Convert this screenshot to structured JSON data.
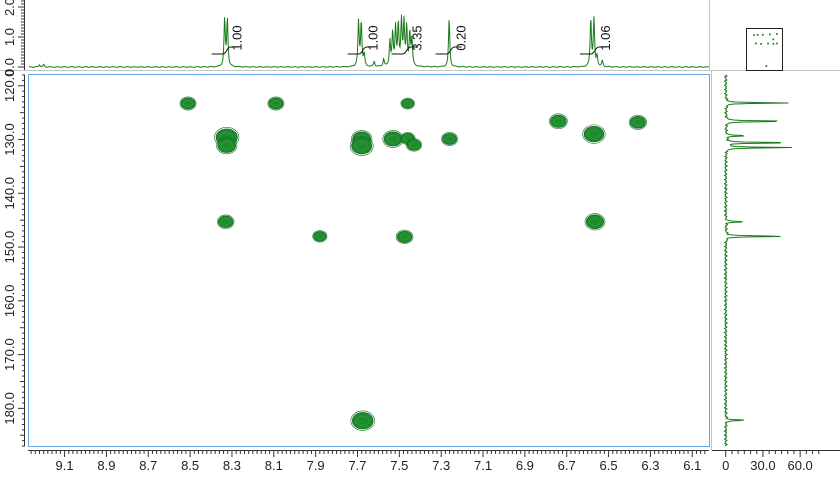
{
  "colors": {
    "trace": "#1a7a1a",
    "contour_fill": "#1f8a2e",
    "contour_edge": "#176f23",
    "axis": "#333333",
    "plot_border": "#6aa3e6",
    "background": "#ffffff"
  },
  "chart_data": {
    "type": "heatmap",
    "description_type": "2D HSQC NMR contour plot",
    "x_axis": {
      "ticks": [
        "9.1",
        "8.9",
        "8.7",
        "8.5",
        "8.3",
        "8.1",
        "7.9",
        "7.7",
        "7.5",
        "7.3",
        "7.1",
        "6.9",
        "6.7",
        "6.5",
        "6.3",
        "6.1"
      ],
      "range": [
        9.27,
        6.02
      ],
      "reversed": true,
      "unit": "ppm"
    },
    "y_axis": {
      "ticks": [
        "120.0",
        "130.0",
        "140.0",
        "150.0",
        "160.0",
        "170.0",
        "180.0"
      ],
      "range": [
        118.0,
        187.0
      ],
      "reversed": true,
      "unit": "ppm"
    },
    "top_1d": {
      "y_ticks": [
        "0.0",
        "1.0",
        "2.0"
      ],
      "integrals": [
        {
          "label": "1.00",
          "x": 8.33
        },
        {
          "label": "1.00",
          "x": 7.68
        },
        {
          "label": "3.35",
          "x": 7.47
        },
        {
          "label": "0.20",
          "x": 7.26
        },
        {
          "label": "1.06",
          "x": 6.57
        }
      ],
      "peaks": [
        {
          "x": 9.22,
          "h": 0.08
        },
        {
          "x": 9.2,
          "h": 0.08
        },
        {
          "x": 8.335,
          "h": 1.6
        },
        {
          "x": 8.322,
          "h": 1.6
        },
        {
          "x": 7.695,
          "h": 1.5
        },
        {
          "x": 7.682,
          "h": 1.5
        },
        {
          "x": 7.668,
          "h": 0.4
        },
        {
          "x": 7.62,
          "h": 0.18
        },
        {
          "x": 7.575,
          "h": 0.25
        },
        {
          "x": 7.545,
          "h": 0.85
        },
        {
          "x": 7.532,
          "h": 1.1
        },
        {
          "x": 7.518,
          "h": 1.3
        },
        {
          "x": 7.505,
          "h": 1.4
        },
        {
          "x": 7.49,
          "h": 1.5
        },
        {
          "x": 7.478,
          "h": 1.45
        },
        {
          "x": 7.465,
          "h": 1.3
        },
        {
          "x": 7.45,
          "h": 1.1
        },
        {
          "x": 7.44,
          "h": 0.9
        },
        {
          "x": 7.262,
          "h": 1.6
        },
        {
          "x": 6.585,
          "h": 1.6
        },
        {
          "x": 6.57,
          "h": 1.6
        },
        {
          "x": 6.555,
          "h": 0.35
        },
        {
          "x": 6.53,
          "h": 0.2
        }
      ]
    },
    "right_1d": {
      "x_ticks": [
        "0",
        "30.0",
        "60.0"
      ],
      "x_range": [
        -3,
        76
      ],
      "peaks": [
        {
          "y": 123.2,
          "v": 50
        },
        {
          "y": 126.6,
          "v": 55
        },
        {
          "y": 129.3,
          "v": 19
        },
        {
          "y": 130.6,
          "v": 57
        },
        {
          "y": 131.5,
          "v": 55
        },
        {
          "y": 145.3,
          "v": 17
        },
        {
          "y": 148.0,
          "v": 53
        },
        {
          "y": 182.2,
          "v": 18
        }
      ]
    },
    "cross_peaks": [
      {
        "x": 8.51,
        "y": 123.3,
        "s": 0.55
      },
      {
        "x": 8.09,
        "y": 123.3,
        "s": 0.55
      },
      {
        "x": 7.46,
        "y": 123.3,
        "s": 0.35
      },
      {
        "x": 6.74,
        "y": 126.6,
        "s": 0.7
      },
      {
        "x": 6.36,
        "y": 126.8,
        "s": 0.65
      },
      {
        "x": 8.325,
        "y": 129.6,
        "s": 1.2
      },
      {
        "x": 8.325,
        "y": 131.1,
        "s": 0.9
      },
      {
        "x": 7.68,
        "y": 129.9,
        "s": 0.9
      },
      {
        "x": 7.68,
        "y": 131.2,
        "s": 1.1
      },
      {
        "x": 7.53,
        "y": 129.9,
        "s": 0.9
      },
      {
        "x": 7.46,
        "y": 129.8,
        "s": 0.45
      },
      {
        "x": 7.43,
        "y": 131.0,
        "s": 0.5
      },
      {
        "x": 7.26,
        "y": 129.9,
        "s": 0.55
      },
      {
        "x": 6.57,
        "y": 129.0,
        "s": 1.05
      },
      {
        "x": 8.33,
        "y": 145.3,
        "s": 0.6
      },
      {
        "x": 6.565,
        "y": 145.3,
        "s": 0.85
      },
      {
        "x": 7.88,
        "y": 148.0,
        "s": 0.4
      },
      {
        "x": 7.475,
        "y": 148.1,
        "s": 0.6
      },
      {
        "x": 7.675,
        "y": 182.3,
        "s": 1.15
      }
    ],
    "overview_dots": [
      {
        "x": 0.2,
        "y": 0.15
      },
      {
        "x": 0.3,
        "y": 0.14
      },
      {
        "x": 0.45,
        "y": 0.14
      },
      {
        "x": 0.65,
        "y": 0.13
      },
      {
        "x": 0.85,
        "y": 0.12
      },
      {
        "x": 0.75,
        "y": 0.25
      },
      {
        "x": 0.25,
        "y": 0.35
      },
      {
        "x": 0.4,
        "y": 0.36
      },
      {
        "x": 0.6,
        "y": 0.35
      },
      {
        "x": 0.75,
        "y": 0.36
      },
      {
        "x": 0.85,
        "y": 0.35
      },
      {
        "x": 0.55,
        "y": 0.9
      }
    ]
  }
}
